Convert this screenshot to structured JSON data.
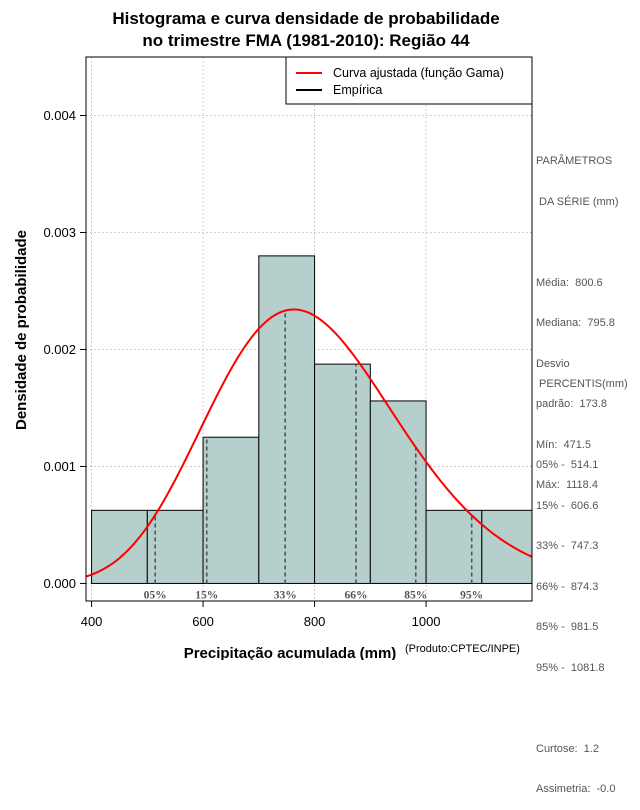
{
  "chart_data": {
    "type": "bar",
    "title_lines": [
      "Histograma e curva densidade de probabilidade",
      "no trimestre FMA (1981-2010): Região 44"
    ],
    "xlabel": "Precipitação acumulada (mm)",
    "ylabel": "Densidade de probabilidade",
    "credit": "(Produto:CPTEC/INPE)",
    "xlim": [
      390,
      1190
    ],
    "ylim": [
      -0.00015,
      0.0045
    ],
    "xticks": [
      400,
      600,
      800,
      1000
    ],
    "xtick_labels": [
      "400",
      "600",
      "800",
      "1000"
    ],
    "yticks": [
      0.0,
      0.001,
      0.002,
      0.003,
      0.004
    ],
    "ytick_labels": [
      "0.000",
      "0.001",
      "0.002",
      "0.003",
      "0.004"
    ],
    "grid_x": [
      400,
      600,
      800,
      1000
    ],
    "grid_y": [
      0.0,
      0.001,
      0.002,
      0.003,
      0.004
    ],
    "bins": [
      {
        "x0": 400,
        "x1": 500,
        "density": 0.000625
      },
      {
        "x0": 500,
        "x1": 600,
        "density": 0.000625
      },
      {
        "x0": 600,
        "x1": 700,
        "density": 0.00125
      },
      {
        "x0": 700,
        "x1": 800,
        "density": 0.0028
      },
      {
        "x0": 800,
        "x1": 900,
        "density": 0.001875
      },
      {
        "x0": 900,
        "x1": 1000,
        "density": 0.00156
      },
      {
        "x0": 1000,
        "x1": 1100,
        "density": 0.000625
      },
      {
        "x0": 1100,
        "x1": 1200,
        "density": 0.000625
      }
    ],
    "gamma_fit": {
      "mean": 800.6,
      "sd": 173.8,
      "x_from": 390,
      "x_to": 1190
    },
    "percentile_lines": [
      {
        "label": "05%",
        "x": 514.1
      },
      {
        "label": "15%",
        "x": 606.6
      },
      {
        "label": "33%",
        "x": 747.3
      },
      {
        "label": "66%",
        "x": 874.3
      },
      {
        "label": "85%",
        "x": 981.5
      },
      {
        "label": "95%",
        "x": 1081.8
      }
    ],
    "legend": {
      "position": "top-right",
      "entries": [
        {
          "label": "Curva ajustada (função Gama)",
          "color": "#ff0000"
        },
        {
          "label": "Empírica",
          "color": "#000000"
        }
      ]
    },
    "colors": {
      "bar_fill": "#b5cfcd",
      "curve": "#ff0000",
      "grid": "#b0b0b0",
      "percentile": "#555555"
    }
  },
  "stats_panel": {
    "title_1": "PARÂMETROS",
    "title_2": " DA SÉRIE (mm)",
    "lines": [
      "Média:  800.6",
      "Mediana:  795.8",
      "Desvio",
      "padrão:  173.8",
      "Mín:  471.5",
      "Máx:  1118.4"
    ]
  },
  "percentis_panel": {
    "title": " PERCENTIS(mm)",
    "lines": [
      "05% -  514.1",
      "15% -  606.6",
      "33% -  747.3",
      "66% -  874.3",
      "85% -  981.5",
      "95% -  1081.8"
    ],
    "curtose": "Curtose:  1.2",
    "assimetria": "Assimetria:  -0.0"
  }
}
